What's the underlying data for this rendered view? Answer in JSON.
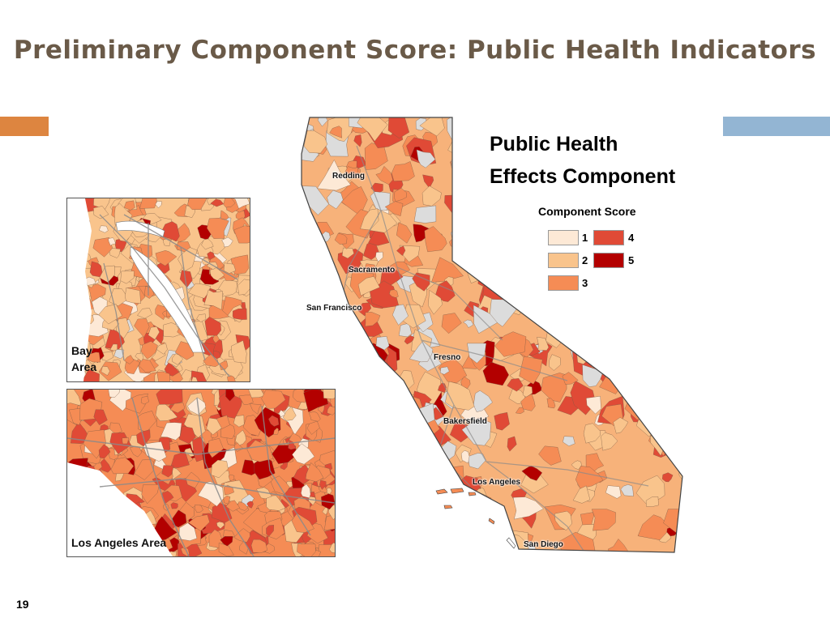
{
  "slide": {
    "title": "Preliminary Component Score: Public Health Indicators",
    "page_number": "19"
  },
  "legend": {
    "title_line1": "Public Health",
    "title_line2": "Effects Component",
    "subtitle": "Component Score",
    "items": [
      {
        "label": "1",
        "color": "#fde9d6"
      },
      {
        "label": "2",
        "color": "#f9c48c"
      },
      {
        "label": "3",
        "color": "#f58c55"
      },
      {
        "label": "4",
        "color": "#e04a36"
      },
      {
        "label": "5",
        "color": "#b30000"
      }
    ]
  },
  "cities": {
    "redding": "Redding",
    "sacramento": "Sacramento",
    "san_francisco": "San Francisco",
    "fresno": "Fresno",
    "bakersfield": "Bakersfield",
    "los_angeles": "Los Angeles",
    "san_diego": "San Diego"
  },
  "insets": {
    "bay_line1": "Bay",
    "bay_line2": "Area",
    "la": "Los Angeles Area"
  },
  "colors": {
    "no_data": "#dcdcdc",
    "roads": "#8a8a8a",
    "accent_left": "#dd8540",
    "accent_right": "#93b5d3",
    "title": "#6a5a48"
  }
}
